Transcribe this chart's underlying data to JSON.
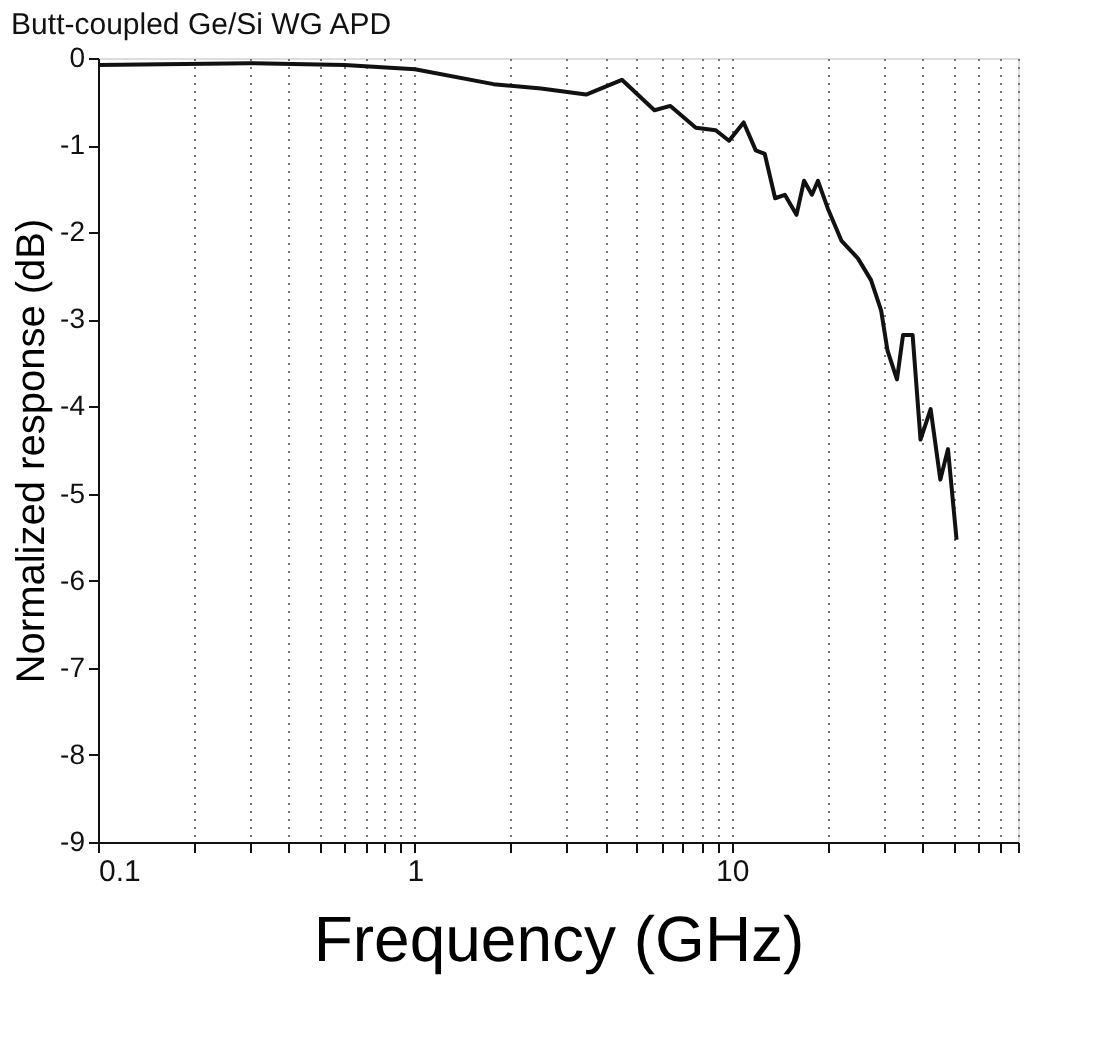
{
  "chart_data": {
    "type": "line",
    "title": "Butt-coupled Ge/Si WG APD",
    "xlabel": "Frequency (GHz)",
    "ylabel": "Normalized response (dB)",
    "log": "x",
    "grid": "x",
    "line_style": "solid",
    "marker": "none",
    "x": [
      0.1,
      0.3,
      0.6,
      1.0,
      1.77,
      2.5,
      3.47,
      4.5,
      5.7,
      6.4,
      7.7,
      8.9,
      9.8,
      10.9,
      11.9,
      12.7,
      13.7,
      14.7,
      16.0,
      16.9,
      17.9,
      18.7,
      20.1,
      22.2,
      25.0,
      27.5,
      29.6,
      31.0,
      33.2,
      34.7,
      37.2,
      39.4,
      42.4,
      45.5,
      48.1,
      51.2
    ],
    "series": [
      {
        "color": "#111111",
        "values": [
          -0.08,
          -0.06,
          -0.08,
          -0.13,
          -0.3,
          -0.35,
          -0.42,
          -0.25,
          -0.6,
          -0.55,
          -0.8,
          -0.83,
          -0.95,
          -0.74,
          -1.06,
          -1.1,
          -1.61,
          -1.57,
          -1.8,
          -1.41,
          -1.57,
          -1.41,
          -1.73,
          -2.1,
          -2.3,
          -2.55,
          -2.9,
          -3.36,
          -3.69,
          -3.18,
          -3.18,
          -4.38,
          -4.03,
          -4.84,
          -4.49,
          -5.53
        ]
      }
    ],
    "xlim": [
      0.1,
      80
    ],
    "ylim": [
      -9,
      0
    ],
    "xticks": [
      0.1,
      {
        "value": 0.2,
        "label": null
      },
      {
        "value": 0.3,
        "label": null
      },
      {
        "value": 0.4,
        "label": null
      },
      {
        "value": 0.5,
        "label": null
      },
      {
        "value": 0.6,
        "label": null
      },
      {
        "value": 0.7,
        "label": null
      },
      {
        "value": 0.8,
        "label": null
      },
      {
        "value": 0.9,
        "label": null
      },
      1,
      {
        "value": 2,
        "label": null
      },
      {
        "value": 3,
        "label": null
      },
      {
        "value": 4,
        "label": null
      },
      {
        "value": 5,
        "label": null
      },
      {
        "value": 6,
        "label": null
      },
      {
        "value": 7,
        "label": null
      },
      {
        "value": 8,
        "label": null
      },
      {
        "value": 9,
        "label": null
      },
      10,
      {
        "value": 20,
        "label": null
      },
      {
        "value": 30,
        "label": null
      },
      {
        "value": 40,
        "label": null
      },
      {
        "value": 50,
        "label": null
      },
      {
        "value": 60,
        "label": null
      },
      {
        "value": 70,
        "label": null
      },
      {
        "value": 80,
        "label": null
      }
    ],
    "yticks": [
      0,
      -1,
      -2,
      -3,
      -4,
      -5,
      -6,
      -7,
      -8,
      -9
    ]
  }
}
